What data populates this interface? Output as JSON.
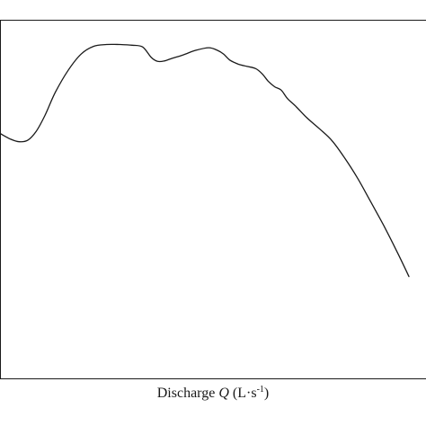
{
  "chart_data": {
    "type": "line",
    "title": "",
    "xlabel": {
      "prefix": "Discharge ",
      "variable": "Q",
      "unit_open": " (L",
      "unit_dot": "·",
      "unit_s": "s",
      "exponent": "-1",
      "unit_close": ")"
    },
    "ylabel": "",
    "xlim": [
      0,
      100
    ],
    "ylim": [
      0,
      100
    ],
    "grid": false,
    "legend": "none",
    "line_color": "#1a1a1a",
    "series": [
      {
        "x": [
          0,
          2.5,
          4.5,
          6.5,
          8.5,
          10.5,
          13,
          16,
          19,
          22,
          25,
          28,
          31,
          33.5,
          35.5,
          37,
          38.5,
          40.5,
          43,
          46,
          49,
          51,
          52.5,
          54,
          56,
          58,
          60,
          61.5,
          63,
          64.5,
          66,
          67.5,
          69.5,
          72,
          75,
          78,
          81,
          84,
          87,
          90,
          93,
          96
        ],
        "y": [
          68.3,
          66.7,
          66.0,
          66.4,
          68.9,
          73.2,
          79.8,
          85.9,
          90.4,
          92.6,
          93.1,
          93.1,
          92.9,
          92.4,
          89.5,
          88.4,
          88.5,
          89.3,
          90.2,
          91.5,
          92.2,
          91.5,
          90.4,
          88.7,
          87.6,
          87.0,
          86.4,
          85.0,
          82.8,
          81.3,
          80.4,
          78.0,
          75.8,
          72.7,
          69.6,
          66.2,
          61.3,
          55.7,
          49.3,
          42.8,
          35.8,
          28.4
        ]
      }
    ]
  }
}
